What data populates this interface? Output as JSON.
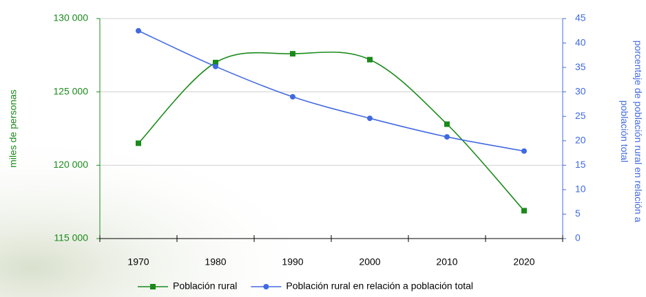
{
  "chart_data": {
    "type": "line",
    "smooth": true,
    "categories": [
      "1970",
      "1980",
      "1990",
      "2000",
      "2010",
      "2020"
    ],
    "series": [
      {
        "name": "Población rural",
        "color": "#1a8a1a",
        "marker": "square",
        "values": [
          121500,
          127000,
          127600,
          127200,
          122800,
          116900
        ]
      },
      {
        "name": "Población rural en relación a población total",
        "color": "#4169e1",
        "marker": "circle",
        "axis": "y2",
        "values": [
          42.5,
          35.2,
          29.0,
          24.6,
          20.8,
          17.9
        ]
      }
    ],
    "ylabel": "miles de personas",
    "ylabel_color": "#1a8a1a",
    "y2label": [
      "porcentaje de población rural en relación a",
      "población total"
    ],
    "y2label_color": "#4169e1",
    "ylim": [
      115000,
      130000
    ],
    "yticks": [
      {
        "value": 115000,
        "label": "115 000"
      },
      {
        "value": 120000,
        "label": "120 000"
      },
      {
        "value": 125000,
        "label": "125 000"
      },
      {
        "value": 130000,
        "label": "130 000"
      }
    ],
    "y2lim": [
      0,
      45
    ],
    "y2ticks": [
      0,
      5,
      10,
      15,
      20,
      25,
      30,
      35,
      40,
      45
    ],
    "grid": true,
    "legend": "bottom"
  }
}
